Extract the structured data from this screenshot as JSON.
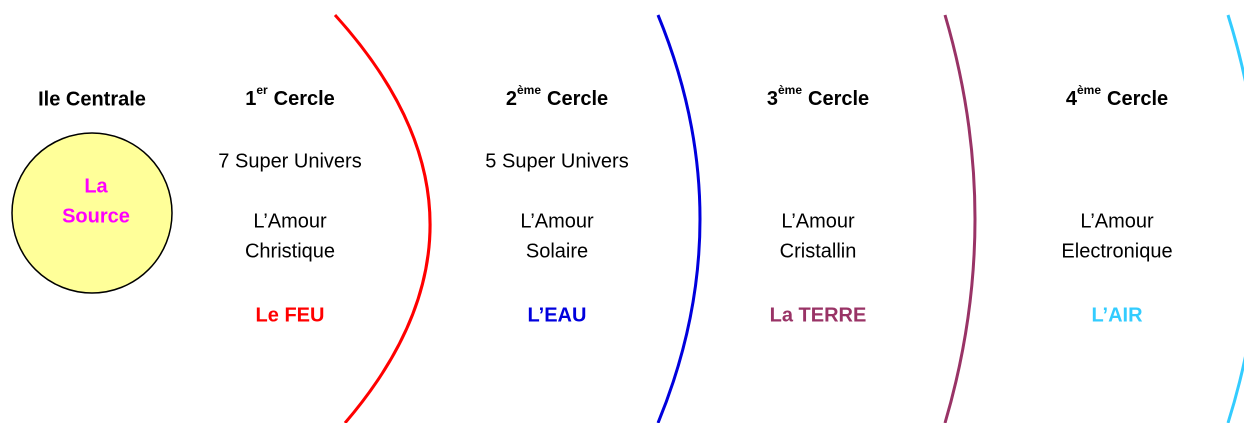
{
  "center": {
    "title": "Ile Centrale",
    "label_lines": [
      "La",
      "Source"
    ],
    "fill": "#ffff99",
    "label_color": "#ff00ff"
  },
  "circles": [
    {
      "number": "1",
      "sup": "er",
      "word": "Cercle",
      "subtitle": "7 Super Univers",
      "love_lines": [
        "L’Amour",
        "Christique"
      ],
      "element": "Le FEU",
      "color": "#ff0000"
    },
    {
      "number": "2",
      "sup": "ème",
      "word": "Cercle",
      "subtitle": "5 Super Univers",
      "love_lines": [
        "L’Amour",
        "Solaire"
      ],
      "element": "L’EAU",
      "color": "#0000dd"
    },
    {
      "number": "3",
      "sup": "ème",
      "word": "Cercle",
      "love_lines": [
        "L’Amour",
        "Cristallin"
      ],
      "element": "La TERRE",
      "color": "#993366"
    },
    {
      "number": "4",
      "sup": "ème",
      "word": "Cercle",
      "love_lines": [
        "L’Amour",
        "Electronique"
      ],
      "element": "L’AIR",
      "color": "#33ccff"
    }
  ]
}
